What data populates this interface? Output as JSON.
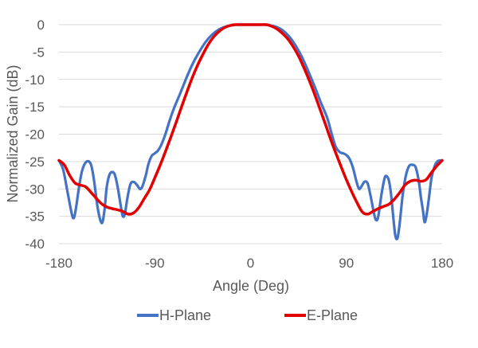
{
  "chart_data": {
    "type": "line",
    "xlabel": "Angle (Deg)",
    "ylabel": "Normalized Gain (dB)",
    "xlim": [
      -180,
      180
    ],
    "ylim": [
      -40,
      0
    ],
    "xticks": [
      -180,
      -90,
      0,
      90,
      180
    ],
    "yticks": [
      0,
      -5,
      -10,
      -15,
      -20,
      -25,
      -30,
      -35,
      -40
    ],
    "grid": "horizontal",
    "legend": "bottom",
    "series": [
      {
        "name": "H-Plane",
        "color": "#4472c4",
        "x": [
          -180,
          -176,
          -172,
          -168,
          -166,
          -164,
          -161,
          -158,
          -154,
          -150,
          -147,
          -144,
          -141,
          -139,
          -137,
          -135,
          -132,
          -128,
          -125,
          -122,
          -120,
          -118,
          -116,
          -113,
          -110,
          -107,
          -104,
          -102,
          -100,
          -98,
          -96,
          -93,
          -90,
          -87,
          -84,
          -80,
          -76,
          -72,
          -66,
          -60,
          -54,
          -48,
          -42,
          -36,
          -30,
          -24,
          -18,
          -12,
          -6,
          0,
          6,
          12,
          18,
          24,
          30,
          36,
          42,
          48,
          54,
          60,
          66,
          72,
          76,
          80,
          84,
          87,
          90,
          93,
          96,
          98,
          100,
          102,
          104,
          107,
          110,
          113,
          116,
          118,
          120,
          123,
          126,
          128,
          130,
          132,
          134,
          136,
          138,
          140,
          143,
          146,
          149,
          152,
          155,
          158,
          160,
          162,
          163,
          164,
          166,
          168,
          170,
          173,
          176,
          180
        ],
        "y": [
          -24.8,
          -26.5,
          -30.5,
          -34.5,
          -35.3,
          -33.5,
          -29.5,
          -26.5,
          -25.0,
          -25.5,
          -28.5,
          -33.0,
          -35.8,
          -36.0,
          -33.5,
          -29.5,
          -27.2,
          -27.2,
          -29.5,
          -33.0,
          -35.0,
          -34.5,
          -32.0,
          -29.2,
          -28.7,
          -29.2,
          -30.0,
          -29.7,
          -28.6,
          -27.2,
          -25.5,
          -24.0,
          -23.5,
          -23.0,
          -22.0,
          -20.0,
          -17.5,
          -15.3,
          -12.5,
          -9.6,
          -7.0,
          -4.9,
          -3.1,
          -1.8,
          -0.9,
          -0.4,
          -0.1,
          0.0,
          0.0,
          0.0,
          0.0,
          0.0,
          -0.1,
          -0.4,
          -1.0,
          -2.1,
          -3.7,
          -5.8,
          -8.4,
          -11.2,
          -14.2,
          -17.0,
          -19.8,
          -22.3,
          -23.3,
          -23.5,
          -23.8,
          -24.5,
          -26.0,
          -27.5,
          -29.0,
          -30.0,
          -29.6,
          -28.7,
          -29.0,
          -31.5,
          -34.5,
          -35.7,
          -35.0,
          -31.0,
          -28.0,
          -27.7,
          -28.5,
          -31.0,
          -35.0,
          -38.5,
          -39.0,
          -36.5,
          -31.0,
          -27.5,
          -25.8,
          -25.6,
          -26.0,
          -28.5,
          -31.5,
          -34.0,
          -35.6,
          -36.0,
          -34.0,
          -31.0,
          -28.0,
          -25.8,
          -24.9,
          -24.8
        ]
      },
      {
        "name": "E-Plane",
        "color": "#e30000",
        "x": [
          -180,
          -175,
          -170,
          -165,
          -160,
          -155,
          -150,
          -145,
          -140,
          -135,
          -130,
          -125,
          -120,
          -115,
          -110,
          -105,
          -100,
          -95,
          -90,
          -85,
          -80,
          -75,
          -70,
          -65,
          -60,
          -55,
          -50,
          -45,
          -40,
          -35,
          -30,
          -25,
          -20,
          -15,
          -10,
          -5,
          0,
          5,
          10,
          15,
          20,
          25,
          30,
          35,
          40,
          45,
          50,
          55,
          60,
          65,
          70,
          75,
          80,
          85,
          90,
          95,
          100,
          105,
          110,
          115,
          120,
          125,
          130,
          135,
          140,
          145,
          150,
          155,
          160,
          165,
          170,
          175,
          180
        ],
        "y": [
          -24.8,
          -25.6,
          -27.5,
          -28.9,
          -29.3,
          -29.6,
          -30.6,
          -31.7,
          -32.7,
          -33.3,
          -33.6,
          -33.8,
          -34.1,
          -34.6,
          -34.4,
          -33.4,
          -31.8,
          -30.2,
          -28.0,
          -25.7,
          -23.2,
          -20.6,
          -17.9,
          -15.1,
          -12.4,
          -9.8,
          -7.5,
          -5.5,
          -3.7,
          -2.3,
          -1.3,
          -0.6,
          -0.2,
          0.0,
          0.0,
          0.0,
          0.0,
          0.0,
          0.0,
          0.0,
          -0.3,
          -0.8,
          -1.6,
          -2.6,
          -4.0,
          -5.7,
          -7.8,
          -10.1,
          -12.6,
          -15.3,
          -18.0,
          -20.8,
          -23.4,
          -25.9,
          -28.3,
          -30.5,
          -32.5,
          -34.2,
          -34.6,
          -34.1,
          -33.6,
          -33.2,
          -32.8,
          -31.9,
          -30.7,
          -29.3,
          -28.6,
          -28.4,
          -28.6,
          -28.3,
          -27.0,
          -25.8,
          -24.8
        ]
      }
    ]
  }
}
